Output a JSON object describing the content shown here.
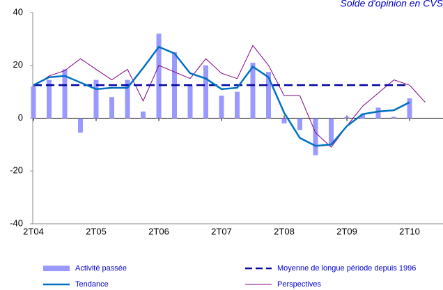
{
  "chart_data": {
    "type": "bar_line",
    "title": "Solde d'opinion en CVS",
    "categories": [
      "2T04",
      null,
      null,
      null,
      "2T05",
      null,
      null,
      null,
      "2T06",
      null,
      null,
      null,
      "2T07",
      null,
      null,
      null,
      "2T08",
      null,
      null,
      null,
      "2T09",
      null,
      null,
      null,
      "2T10",
      null
    ],
    "series": [
      {
        "name": "Activité passée",
        "kind": "bar",
        "color": "#9999ff",
        "values": [
          12,
          14.5,
          18.5,
          -5.5,
          14.5,
          8,
          14.5,
          2.5,
          32,
          25,
          12.5,
          20,
          8.5,
          10,
          21,
          17.5,
          -2,
          -4.5,
          -14,
          -10,
          0.5,
          1.5,
          4,
          0.5,
          7.5,
          null
        ]
      },
      {
        "name": "Moyenne de longue période depuis 1996",
        "kind": "dashed",
        "color": "#0000a0",
        "values": [
          12.5,
          12.5,
          12.5,
          12.5,
          12.5,
          12.5,
          12.5,
          12.5,
          12.5,
          12.5,
          12.5,
          12.5,
          12.5,
          12.5,
          12.5,
          12.5,
          12.5,
          12.5,
          12.5,
          12.5,
          12.5,
          12.5,
          12.5,
          12.5,
          12.5,
          null
        ]
      },
      {
        "name": "Tendance",
        "kind": "line",
        "color": "#0070c0",
        "values": [
          12.5,
          15.5,
          16,
          13.5,
          11,
          11.5,
          11.5,
          19,
          27,
          24.5,
          17,
          15,
          11,
          11.5,
          19.5,
          15.5,
          2,
          -7.5,
          -10.5,
          -10,
          -3,
          1.5,
          2.5,
          3,
          6,
          null
        ]
      },
      {
        "name": "Perspectives",
        "kind": "thin",
        "color": "#800080",
        "values": [
          12,
          16,
          18,
          22.5,
          18.5,
          14.5,
          18.5,
          6.5,
          20,
          17.5,
          15,
          22.5,
          17,
          15,
          27.5,
          20,
          8.5,
          8.5,
          -5.5,
          -11,
          -3,
          4.5,
          9.5,
          14.5,
          12.5,
          6
        ]
      }
    ],
    "ylim": [
      -40,
      40
    ],
    "yticks": [
      40,
      20,
      0,
      -20,
      -40
    ]
  }
}
